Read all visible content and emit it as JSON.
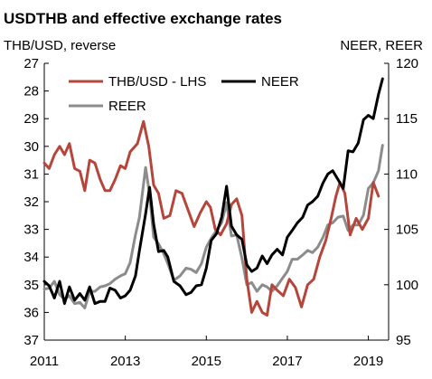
{
  "chart_data": {
    "type": "line",
    "title": "USDTHB and  effective exchange rates",
    "left_axis": {
      "label": "THB/USD, reverse",
      "reversed": true,
      "ylim": [
        27,
        37
      ],
      "ticks": [
        27,
        28,
        29,
        30,
        31,
        32,
        33,
        34,
        35,
        36,
        37
      ]
    },
    "right_axis": {
      "label": "NEER, REER",
      "ylim": [
        95,
        120
      ],
      "ticks": [
        95,
        100,
        105,
        110,
        115,
        120
      ]
    },
    "x_axis": {
      "xlim": [
        2011.0,
        2019.5
      ],
      "ticks": [
        2011,
        2013,
        2015,
        2017,
        2019
      ]
    },
    "grid": false,
    "legend": {
      "placement": "top-left",
      "entries": [
        "THB/USD - LHS",
        "NEER",
        "REER"
      ]
    },
    "series": [
      {
        "name": "THB/USD - LHS",
        "axis": "left",
        "color": "#b5463c",
        "x": [
          2011.0,
          2011.12,
          2011.25,
          2011.38,
          2011.5,
          2011.62,
          2011.75,
          2011.88,
          2012.0,
          2012.12,
          2012.25,
          2012.38,
          2012.5,
          2012.62,
          2012.75,
          2012.88,
          2013.0,
          2013.12,
          2013.3,
          2013.45,
          2013.58,
          2013.7,
          2013.82,
          2013.95,
          2014.1,
          2014.25,
          2014.4,
          2014.55,
          2014.7,
          2014.85,
          2015.0,
          2015.1,
          2015.22,
          2015.35,
          2015.5,
          2015.62,
          2015.75,
          2015.88,
          2016.0,
          2016.12,
          2016.25,
          2016.38,
          2016.5,
          2016.62,
          2016.75,
          2016.9,
          2017.05,
          2017.2,
          2017.35,
          2017.5,
          2017.65,
          2017.8,
          2017.95,
          2018.08,
          2018.2,
          2018.3,
          2018.42,
          2018.55,
          2018.7,
          2018.85,
          2019.0,
          2019.12,
          2019.25
        ],
        "y": [
          30.6,
          30.8,
          30.3,
          30.0,
          30.3,
          29.9,
          30.8,
          30.9,
          31.6,
          30.5,
          30.6,
          31.2,
          31.6,
          31.6,
          31.2,
          30.7,
          30.8,
          30.2,
          29.9,
          29.1,
          30.0,
          31.4,
          31.7,
          32.6,
          32.5,
          31.6,
          31.7,
          32.3,
          32.9,
          32.4,
          32.0,
          32.2,
          33.0,
          33.2,
          32.8,
          32.1,
          31.9,
          32.5,
          34.8,
          36.0,
          35.6,
          36.0,
          36.1,
          35.0,
          35.2,
          35.4,
          34.8,
          35.1,
          35.8,
          35.0,
          34.8,
          34.0,
          33.4,
          32.6,
          31.8,
          31.3,
          31.7,
          33.2,
          32.6,
          33.0,
          32.6,
          31.3,
          31.8
        ]
      },
      {
        "name": "NEER",
        "axis": "right",
        "color": "#000000",
        "x": [
          2011.0,
          2011.12,
          2011.25,
          2011.38,
          2011.5,
          2011.62,
          2011.75,
          2011.88,
          2012.0,
          2012.12,
          2012.25,
          2012.38,
          2012.5,
          2012.62,
          2012.75,
          2012.88,
          2013.0,
          2013.12,
          2013.25,
          2013.35,
          2013.5,
          2013.6,
          2013.7,
          2013.82,
          2013.95,
          2014.05,
          2014.2,
          2014.35,
          2014.5,
          2014.62,
          2014.75,
          2014.88,
          2015.0,
          2015.12,
          2015.25,
          2015.38,
          2015.5,
          2015.62,
          2015.75,
          2015.88,
          2016.0,
          2016.12,
          2016.25,
          2016.38,
          2016.5,
          2016.62,
          2016.75,
          2016.88,
          2017.0,
          2017.12,
          2017.25,
          2017.38,
          2017.5,
          2017.62,
          2017.75,
          2017.88,
          2018.0,
          2018.12,
          2018.25,
          2018.38,
          2018.5,
          2018.62,
          2018.75,
          2018.88,
          2019.0,
          2019.12,
          2019.25,
          2019.35
        ],
        "y": [
          100.3,
          99.9,
          98.8,
          100.3,
          98.3,
          99.8,
          98.6,
          99.2,
          98.6,
          99.8,
          98.3,
          98.5,
          98.5,
          99.7,
          99.5,
          98.8,
          99.0,
          99.5,
          100.8,
          103.1,
          106.4,
          108.8,
          105.5,
          103.0,
          103.1,
          102.5,
          100.3,
          99.9,
          99.1,
          99.3,
          99.9,
          100.0,
          101.5,
          104.0,
          104.6,
          106.1,
          108.9,
          105.3,
          104.5,
          104.1,
          101.8,
          101.2,
          101.5,
          102.6,
          101.9,
          102.7,
          103.2,
          102.7,
          104.3,
          104.9,
          105.6,
          106.1,
          107.2,
          107.5,
          108.0,
          109.2,
          110.0,
          110.3,
          109.5,
          108.7,
          112.1,
          112.0,
          112.8,
          114.9,
          115.3,
          115.0,
          117.2,
          118.6
        ]
      },
      {
        "name": "REER",
        "axis": "right",
        "color": "#8c8c8c",
        "x": [
          2011.0,
          2011.12,
          2011.25,
          2011.38,
          2011.5,
          2011.62,
          2011.75,
          2011.88,
          2012.0,
          2012.12,
          2012.25,
          2012.38,
          2012.5,
          2012.62,
          2012.75,
          2012.88,
          2013.0,
          2013.12,
          2013.25,
          2013.35,
          2013.5,
          2013.6,
          2013.7,
          2013.82,
          2013.95,
          2014.05,
          2014.2,
          2014.35,
          2014.5,
          2014.62,
          2014.75,
          2014.88,
          2015.0,
          2015.12,
          2015.25,
          2015.38,
          2015.5,
          2015.62,
          2015.75,
          2015.88,
          2016.0,
          2016.12,
          2016.25,
          2016.38,
          2016.5,
          2016.62,
          2016.75,
          2016.88,
          2017.0,
          2017.12,
          2017.25,
          2017.38,
          2017.5,
          2017.62,
          2017.75,
          2017.88,
          2018.0,
          2018.12,
          2018.25,
          2018.38,
          2018.5,
          2018.62,
          2018.75,
          2018.88,
          2019.0,
          2019.12,
          2019.25,
          2019.35
        ],
        "y": [
          99.6,
          99.7,
          100.3,
          99.1,
          98.7,
          99.0,
          98.3,
          98.4,
          97.9,
          99.4,
          99.4,
          99.8,
          99.9,
          100.1,
          100.5,
          100.8,
          101.0,
          102.0,
          104.5,
          106.1,
          110.6,
          108.2,
          104.3,
          103.7,
          102.8,
          101.9,
          100.4,
          100.8,
          101.5,
          101.4,
          101.1,
          101.9,
          103.4,
          104.2,
          104.9,
          105.6,
          107.4,
          104.4,
          104.5,
          102.4,
          100.0,
          100.2,
          99.4,
          100.0,
          99.8,
          99.4,
          99.9,
          100.6,
          101.2,
          102.3,
          102.3,
          102.7,
          103.1,
          102.9,
          103.4,
          104.3,
          105.4,
          105.6,
          106.1,
          106.2,
          104.9,
          105.4,
          105.4,
          106.3,
          108.7,
          109.2,
          110.3,
          112.6
        ]
      }
    ]
  }
}
